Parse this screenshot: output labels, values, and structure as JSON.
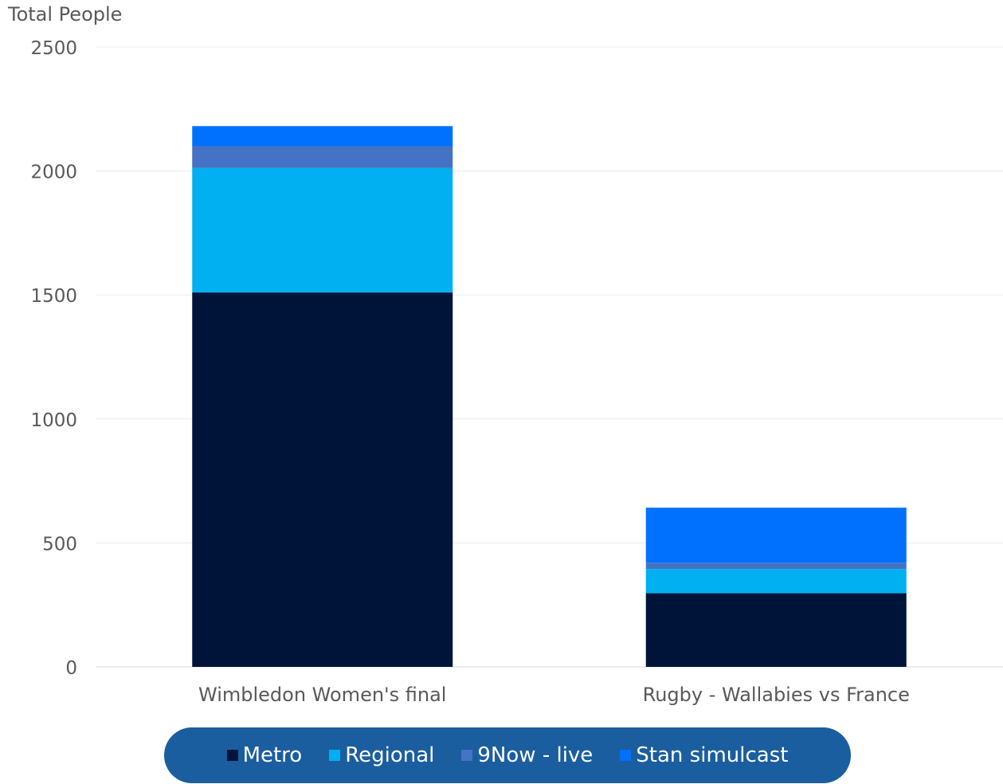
{
  "chart_data": {
    "type": "bar",
    "stacked": true,
    "ylabel": "Total People",
    "xlabel": "",
    "ylim": [
      0,
      2500
    ],
    "yticks": [
      0,
      500,
      1000,
      1500,
      2000,
      2500
    ],
    "grid": true,
    "legend_position": "bottom",
    "categories": [
      "Wimbledon Women's final",
      "Rugby - Wallabies vs France"
    ],
    "series": [
      {
        "name": "Metro",
        "color": "#00143a",
        "values": [
          1510,
          297
        ]
      },
      {
        "name": "Regional",
        "color": "#00b0f0",
        "values": [
          502,
          98
        ]
      },
      {
        "name": "9Now - live",
        "color": "#4472c4",
        "values": [
          88,
          25
        ]
      },
      {
        "name": "Stan simulcast",
        "color": "#0070ff",
        "values": [
          81,
          222
        ]
      }
    ]
  },
  "legend": {
    "background": "#1b5e9f"
  }
}
